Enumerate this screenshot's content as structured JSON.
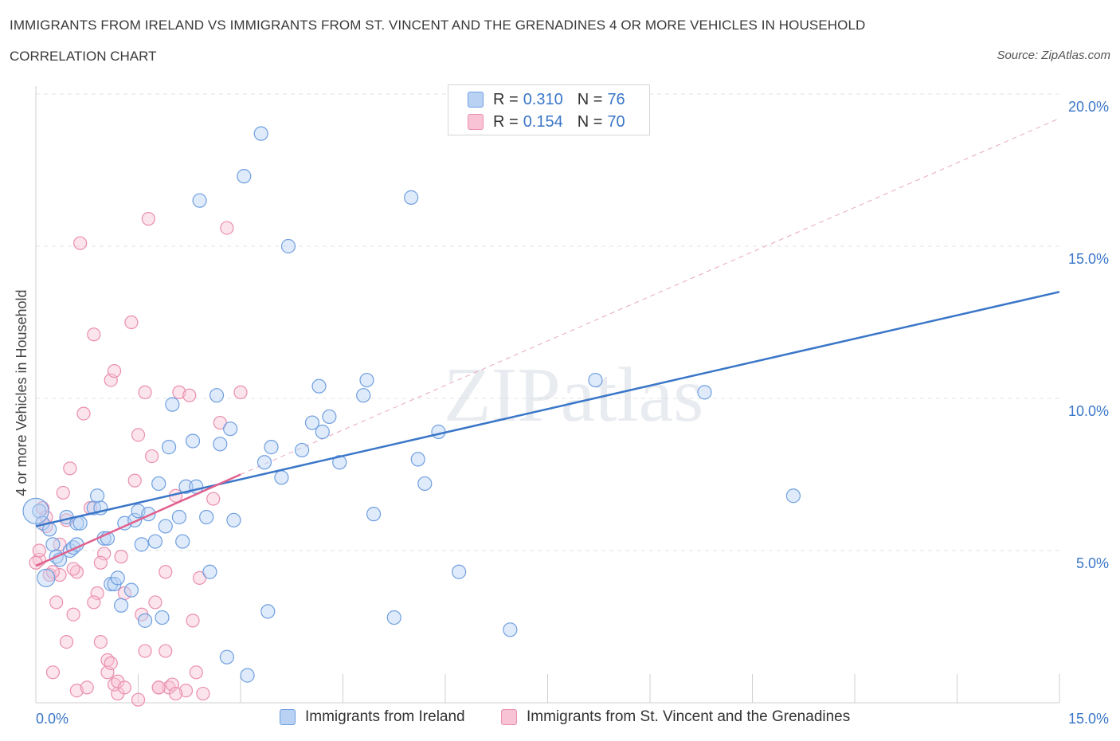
{
  "title": "IMMIGRANTS FROM IRELAND VS IMMIGRANTS FROM ST. VINCENT AND THE GRENADINES 4 OR MORE VEHICLES IN HOUSEHOLD",
  "subtitle": "CORRELATION CHART",
  "source": "Source: ZipAtlas.com",
  "watermark": "ZIPatlas",
  "colors": {
    "blue": "#3a76c8",
    "blue_fill": "#b9d2f3",
    "pink": "#e0608e",
    "pink_fill": "#f8c3d4",
    "axis_text": "#3a76c8",
    "grid": "#e3e3e3"
  },
  "legend": {
    "rows": [
      {
        "r_label": "R =",
        "r_value": "0.310",
        "n_label": "N =",
        "n_value": "76"
      },
      {
        "r_label": "R =",
        "r_value": "0.154",
        "n_label": "N =",
        "n_value": "70"
      }
    ]
  },
  "bottom_legend": [
    {
      "label": "Immigrants from Ireland"
    },
    {
      "label": "Immigrants from St. Vincent and the Grenadines"
    }
  ],
  "chart_data": {
    "type": "scatter",
    "xlabel": "",
    "ylabel": "4 or more Vehicles in Household",
    "xlim": [
      0,
      15
    ],
    "ylim": [
      0,
      20
    ],
    "x_tick_labels": [
      "0.0%",
      "15.0%"
    ],
    "y_tick_labels": [
      "5.0%",
      "10.0%",
      "15.0%",
      "20.0%"
    ],
    "y_ticks": [
      5,
      10,
      15,
      20
    ],
    "grid": true,
    "series": [
      {
        "name": "Immigrants from Ireland",
        "color": "#3a76c8",
        "trend": {
          "x": [
            0,
            15
          ],
          "y": [
            5.8,
            13.5
          ]
        },
        "points": [
          [
            0.05,
            6.3
          ],
          [
            0.1,
            5.9
          ],
          [
            0.15,
            4.1
          ],
          [
            0.2,
            5.7
          ],
          [
            0.25,
            5.2
          ],
          [
            0.3,
            4.8
          ],
          [
            0.35,
            4.7
          ],
          [
            0.45,
            6.1
          ],
          [
            0.5,
            5.0
          ],
          [
            0.55,
            5.1
          ],
          [
            0.6,
            5.9
          ],
          [
            0.65,
            5.9
          ],
          [
            0.85,
            6.4
          ],
          [
            0.9,
            6.8
          ],
          [
            0.95,
            6.4
          ],
          [
            1.0,
            5.4
          ],
          [
            1.05,
            5.4
          ],
          [
            1.1,
            3.9
          ],
          [
            1.15,
            3.9
          ],
          [
            1.2,
            4.1
          ],
          [
            1.25,
            3.2
          ],
          [
            1.3,
            5.9
          ],
          [
            1.4,
            3.7
          ],
          [
            1.45,
            6.0
          ],
          [
            1.5,
            6.3
          ],
          [
            1.55,
            5.2
          ],
          [
            1.6,
            2.7
          ],
          [
            1.65,
            6.2
          ],
          [
            1.75,
            5.3
          ],
          [
            1.8,
            7.2
          ],
          [
            1.85,
            2.8
          ],
          [
            1.9,
            5.8
          ],
          [
            1.95,
            8.4
          ],
          [
            2.0,
            9.8
          ],
          [
            2.1,
            6.1
          ],
          [
            2.15,
            5.3
          ],
          [
            2.2,
            7.1
          ],
          [
            2.3,
            8.6
          ],
          [
            2.35,
            7.1
          ],
          [
            2.4,
            16.5
          ],
          [
            2.5,
            6.1
          ],
          [
            2.55,
            4.3
          ],
          [
            2.65,
            10.1
          ],
          [
            2.7,
            8.5
          ],
          [
            2.8,
            1.5
          ],
          [
            2.85,
            9.0
          ],
          [
            2.9,
            6.0
          ],
          [
            3.05,
            17.3
          ],
          [
            3.1,
            0.9
          ],
          [
            3.3,
            18.7
          ],
          [
            3.35,
            7.9
          ],
          [
            3.4,
            3.0
          ],
          [
            3.45,
            8.4
          ],
          [
            3.6,
            7.4
          ],
          [
            3.7,
            15.0
          ],
          [
            3.9,
            8.3
          ],
          [
            4.05,
            9.2
          ],
          [
            4.15,
            10.4
          ],
          [
            4.2,
            8.9
          ],
          [
            4.3,
            9.4
          ],
          [
            4.45,
            7.9
          ],
          [
            4.8,
            10.1
          ],
          [
            4.85,
            10.6
          ],
          [
            4.95,
            6.2
          ],
          [
            5.25,
            2.8
          ],
          [
            5.5,
            16.6
          ],
          [
            5.6,
            8.0
          ],
          [
            5.7,
            7.2
          ],
          [
            5.9,
            8.9
          ],
          [
            6.2,
            4.3
          ],
          [
            6.95,
            2.4
          ],
          [
            8.2,
            10.6
          ],
          [
            9.8,
            10.2
          ],
          [
            11.1,
            6.8
          ],
          [
            0.0,
            6.3
          ],
          [
            0.6,
            5.2
          ]
        ]
      },
      {
        "name": "Immigrants from St. Vincent and the Grenadines",
        "color": "#e0608e",
        "trend": {
          "x": [
            0,
            3.0
          ],
          "y": [
            4.5,
            7.5
          ]
        },
        "points": [
          [
            0.05,
            4.7
          ],
          [
            0.1,
            6.4
          ],
          [
            0.15,
            5.8
          ],
          [
            0.2,
            4.2
          ],
          [
            0.25,
            1.0
          ],
          [
            0.3,
            3.3
          ],
          [
            0.35,
            4.2
          ],
          [
            0.4,
            6.9
          ],
          [
            0.45,
            2.0
          ],
          [
            0.5,
            7.7
          ],
          [
            0.55,
            2.9
          ],
          [
            0.6,
            4.3
          ],
          [
            0.65,
            15.1
          ],
          [
            0.7,
            9.5
          ],
          [
            0.8,
            6.4
          ],
          [
            0.85,
            12.1
          ],
          [
            0.9,
            3.6
          ],
          [
            0.95,
            2.0
          ],
          [
            1.0,
            4.9
          ],
          [
            1.05,
            1.4
          ],
          [
            1.1,
            10.6
          ],
          [
            1.15,
            10.9
          ],
          [
            1.2,
            0.3
          ],
          [
            1.25,
            4.8
          ],
          [
            1.3,
            3.6
          ],
          [
            1.4,
            12.5
          ],
          [
            1.45,
            7.3
          ],
          [
            1.5,
            8.8
          ],
          [
            1.55,
            2.9
          ],
          [
            1.6,
            10.2
          ],
          [
            1.65,
            15.9
          ],
          [
            1.7,
            8.1
          ],
          [
            1.75,
            3.3
          ],
          [
            1.8,
            0.5
          ],
          [
            1.9,
            4.3
          ],
          [
            1.95,
            0.5
          ],
          [
            2.0,
            0.6
          ],
          [
            2.05,
            6.8
          ],
          [
            2.1,
            10.2
          ],
          [
            2.2,
            0.4
          ],
          [
            2.25,
            10.1
          ],
          [
            2.3,
            2.7
          ],
          [
            2.35,
            1.0
          ],
          [
            2.4,
            4.1
          ],
          [
            2.45,
            0.3
          ],
          [
            2.7,
            9.2
          ],
          [
            2.8,
            15.6
          ],
          [
            3.0,
            10.2
          ],
          [
            0.0,
            4.6
          ],
          [
            0.05,
            5.0
          ],
          [
            0.15,
            6.1
          ],
          [
            0.25,
            4.3
          ],
          [
            0.35,
            5.2
          ],
          [
            0.45,
            6.0
          ],
          [
            0.55,
            4.4
          ],
          [
            0.6,
            0.4
          ],
          [
            0.75,
            0.5
          ],
          [
            0.85,
            3.3
          ],
          [
            0.95,
            4.6
          ],
          [
            1.05,
            1.0
          ],
          [
            1.1,
            1.3
          ],
          [
            1.15,
            0.6
          ],
          [
            1.2,
            0.7
          ],
          [
            1.3,
            0.5
          ],
          [
            1.5,
            0.1
          ],
          [
            1.6,
            1.7
          ],
          [
            1.8,
            0.5
          ],
          [
            1.9,
            1.7
          ],
          [
            2.05,
            0.3
          ],
          [
            2.6,
            6.7
          ]
        ]
      }
    ]
  }
}
